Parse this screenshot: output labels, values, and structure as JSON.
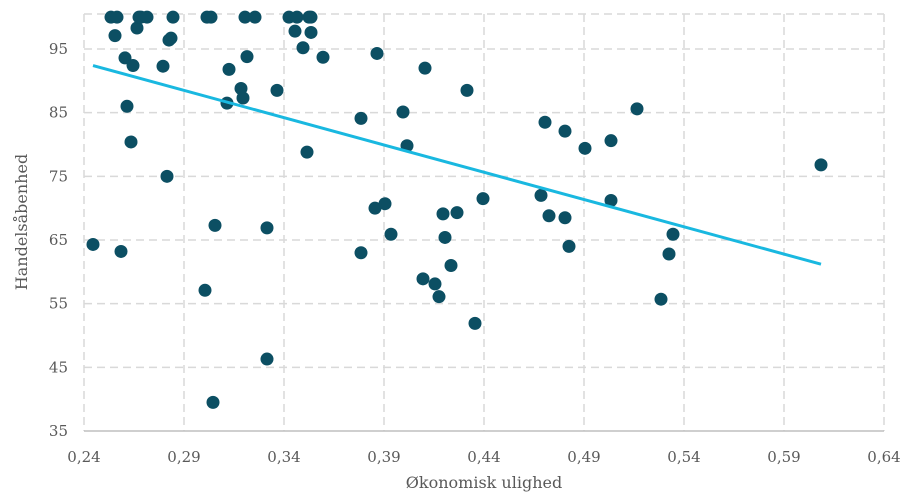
{
  "chart_data": {
    "type": "scatter",
    "xlabel": "Økonomisk ulighed",
    "ylabel": "Handelsåbenhed",
    "xlim": [
      0.24,
      0.64
    ],
    "ylim": [
      35,
      100
    ],
    "x_ticks": [
      0.24,
      0.29,
      0.34,
      0.39,
      0.44,
      0.49,
      0.54,
      0.59,
      0.64
    ],
    "x_tick_labels": [
      "0,24",
      "0,29",
      "0,34",
      "0,39",
      "0,44",
      "0,49",
      "0,54",
      "0,59",
      "0,64"
    ],
    "y_ticks": [
      35,
      45,
      55,
      65,
      75,
      85,
      95
    ],
    "y_tick_labels": [
      "35",
      "45",
      "55",
      "65",
      "75",
      "85",
      "95"
    ],
    "grid": true,
    "point_color": "#0c4f63",
    "trend_color": "#19b8e0",
    "trendline": {
      "x": [
        0.2445,
        0.6085
      ],
      "y": [
        92.4,
        61.2
      ]
    },
    "series": [
      {
        "points": [
          [
            0.2445,
            64.3
          ],
          [
            0.2535,
            100
          ],
          [
            0.2555,
            97.1
          ],
          [
            0.2565,
            100
          ],
          [
            0.2585,
            63.2
          ],
          [
            0.2605,
            93.6
          ],
          [
            0.2615,
            86.0
          ],
          [
            0.2635,
            80.4
          ],
          [
            0.2645,
            92.4
          ],
          [
            0.2665,
            98.3
          ],
          [
            0.2675,
            100
          ],
          [
            0.2685,
            100
          ],
          [
            0.2715,
            100
          ],
          [
            0.2795,
            92.3
          ],
          [
            0.2815,
            75.0
          ],
          [
            0.2825,
            96.4
          ],
          [
            0.2835,
            96.7
          ],
          [
            0.2845,
            100
          ],
          [
            0.3005,
            57.1
          ],
          [
            0.3015,
            100
          ],
          [
            0.3035,
            100
          ],
          [
            0.3045,
            39.5
          ],
          [
            0.3055,
            67.3
          ],
          [
            0.3115,
            86.5
          ],
          [
            0.3125,
            91.8
          ],
          [
            0.3185,
            88.8
          ],
          [
            0.3195,
            87.3
          ],
          [
            0.3205,
            100
          ],
          [
            0.3215,
            93.8
          ],
          [
            0.3255,
            100
          ],
          [
            0.3315,
            66.9
          ],
          [
            0.3315,
            46.3
          ],
          [
            0.3365,
            88.5
          ],
          [
            0.3425,
            100
          ],
          [
            0.3455,
            97.8
          ],
          [
            0.3465,
            100
          ],
          [
            0.3495,
            95.2
          ],
          [
            0.3515,
            78.8
          ],
          [
            0.3525,
            100
          ],
          [
            0.3535,
            100
          ],
          [
            0.3535,
            97.6
          ],
          [
            0.3595,
            93.7
          ],
          [
            0.3785,
            84.1
          ],
          [
            0.3785,
            63.0
          ],
          [
            0.3855,
            70.0
          ],
          [
            0.3865,
            94.3
          ],
          [
            0.3905,
            70.7
          ],
          [
            0.3935,
            65.9
          ],
          [
            0.3995,
            85.1
          ],
          [
            0.4015,
            79.8
          ],
          [
            0.4095,
            58.9
          ],
          [
            0.4105,
            92.0
          ],
          [
            0.4155,
            58.1
          ],
          [
            0.4175,
            56.1
          ],
          [
            0.4195,
            69.1
          ],
          [
            0.4205,
            65.4
          ],
          [
            0.4235,
            61.0
          ],
          [
            0.4265,
            69.3
          ],
          [
            0.4315,
            88.5
          ],
          [
            0.4355,
            51.9
          ],
          [
            0.4395,
            71.5
          ],
          [
            0.4685,
            72.0
          ],
          [
            0.4705,
            83.5
          ],
          [
            0.4725,
            68.8
          ],
          [
            0.4805,
            82.1
          ],
          [
            0.4805,
            68.5
          ],
          [
            0.4825,
            64.0
          ],
          [
            0.4905,
            79.4
          ],
          [
            0.5035,
            80.6
          ],
          [
            0.5035,
            71.2
          ],
          [
            0.5165,
            85.6
          ],
          [
            0.5285,
            55.7
          ],
          [
            0.5325,
            62.8
          ],
          [
            0.5345,
            65.9
          ],
          [
            0.6085,
            76.8
          ]
        ]
      }
    ]
  }
}
